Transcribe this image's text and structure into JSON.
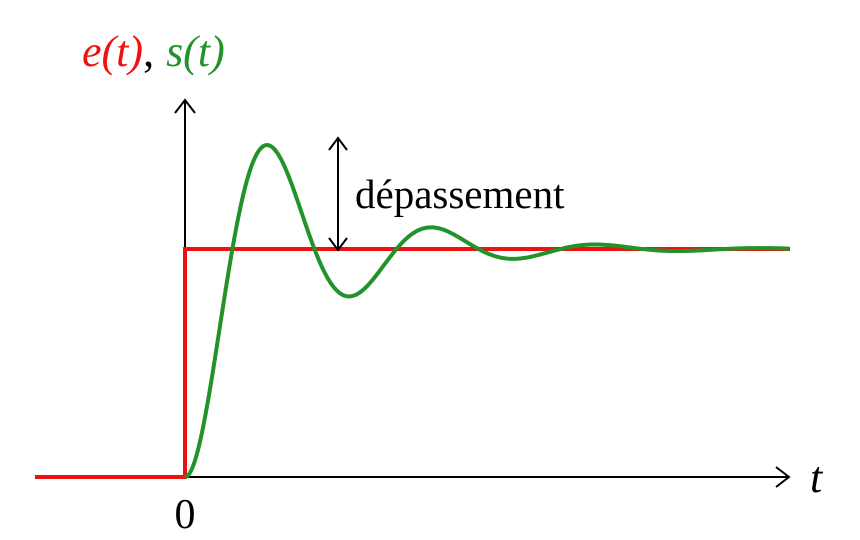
{
  "title": {
    "input_label": "e(t)",
    "separator": ",",
    "output_label": "s(t)"
  },
  "overshoot_label": "dépassement",
  "time_axis_label": "t",
  "origin_label": "0"
}
